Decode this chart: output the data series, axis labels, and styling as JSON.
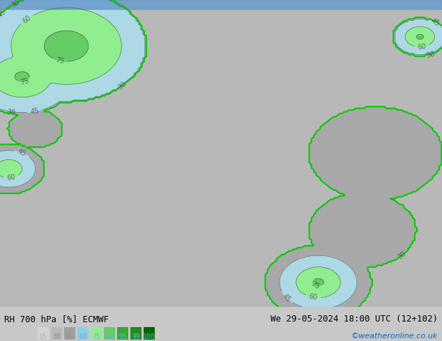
{
  "title_left": "RH 700 hPa [%] ECMWF",
  "title_right": "We 29-05-2024 18:00 UTC (12+102)",
  "credit": "©weatheronline.co.uk",
  "legend_values": [
    15,
    30,
    45,
    60,
    75,
    90,
    95,
    99,
    100
  ],
  "legend_colors": [
    "#d3d3d3",
    "#b0b0b0",
    "#909090",
    "#add8e6",
    "#90ee90",
    "#90ee90",
    "#66cc66",
    "#33aa33",
    "#006600"
  ],
  "bg_color": "#c8c8c8",
  "contour_color": "#404040",
  "border_color": "#00cc00",
  "figsize": [
    6.34,
    4.9
  ],
  "dpi": 100
}
